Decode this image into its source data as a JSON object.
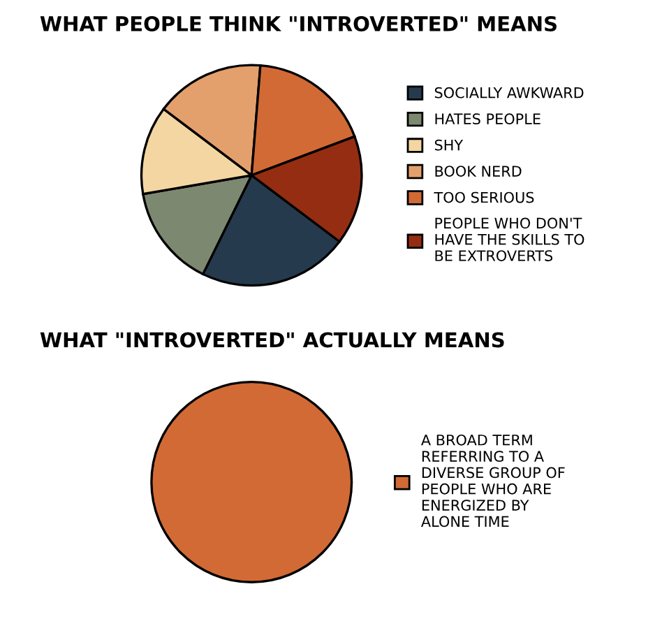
{
  "chart_data": [
    {
      "type": "pie",
      "title": "WHAT PEOPLE THINK \"INTROVERTED\" MEANS",
      "categories": [
        "SOCIALLY AWKWARD",
        "HATES PEOPLE",
        "SHY",
        "BOOK NERD",
        "TOO SERIOUS",
        "PEOPLE WHO DON'T\nHAVE THE SKILLS TO\nBE EXTROVERTS"
      ],
      "values": [
        22,
        15,
        13,
        16,
        18,
        16
      ],
      "colors": [
        "#263a4d",
        "#7d8870",
        "#f4d6a2",
        "#e4a06c",
        "#d26a35",
        "#952d12"
      ],
      "legend": "right"
    },
    {
      "type": "pie",
      "title": "WHAT \"INTROVERTED\" ACTUALLY MEANS",
      "categories": [
        "A BROAD TERM\nREFERRING TO A\nDIVERSE GROUP OF\nPEOPLE WHO ARE\nENERGIZED BY\nALONE TIME"
      ],
      "values": [
        100
      ],
      "colors": [
        "#d26a35"
      ],
      "legend": "right"
    }
  ]
}
